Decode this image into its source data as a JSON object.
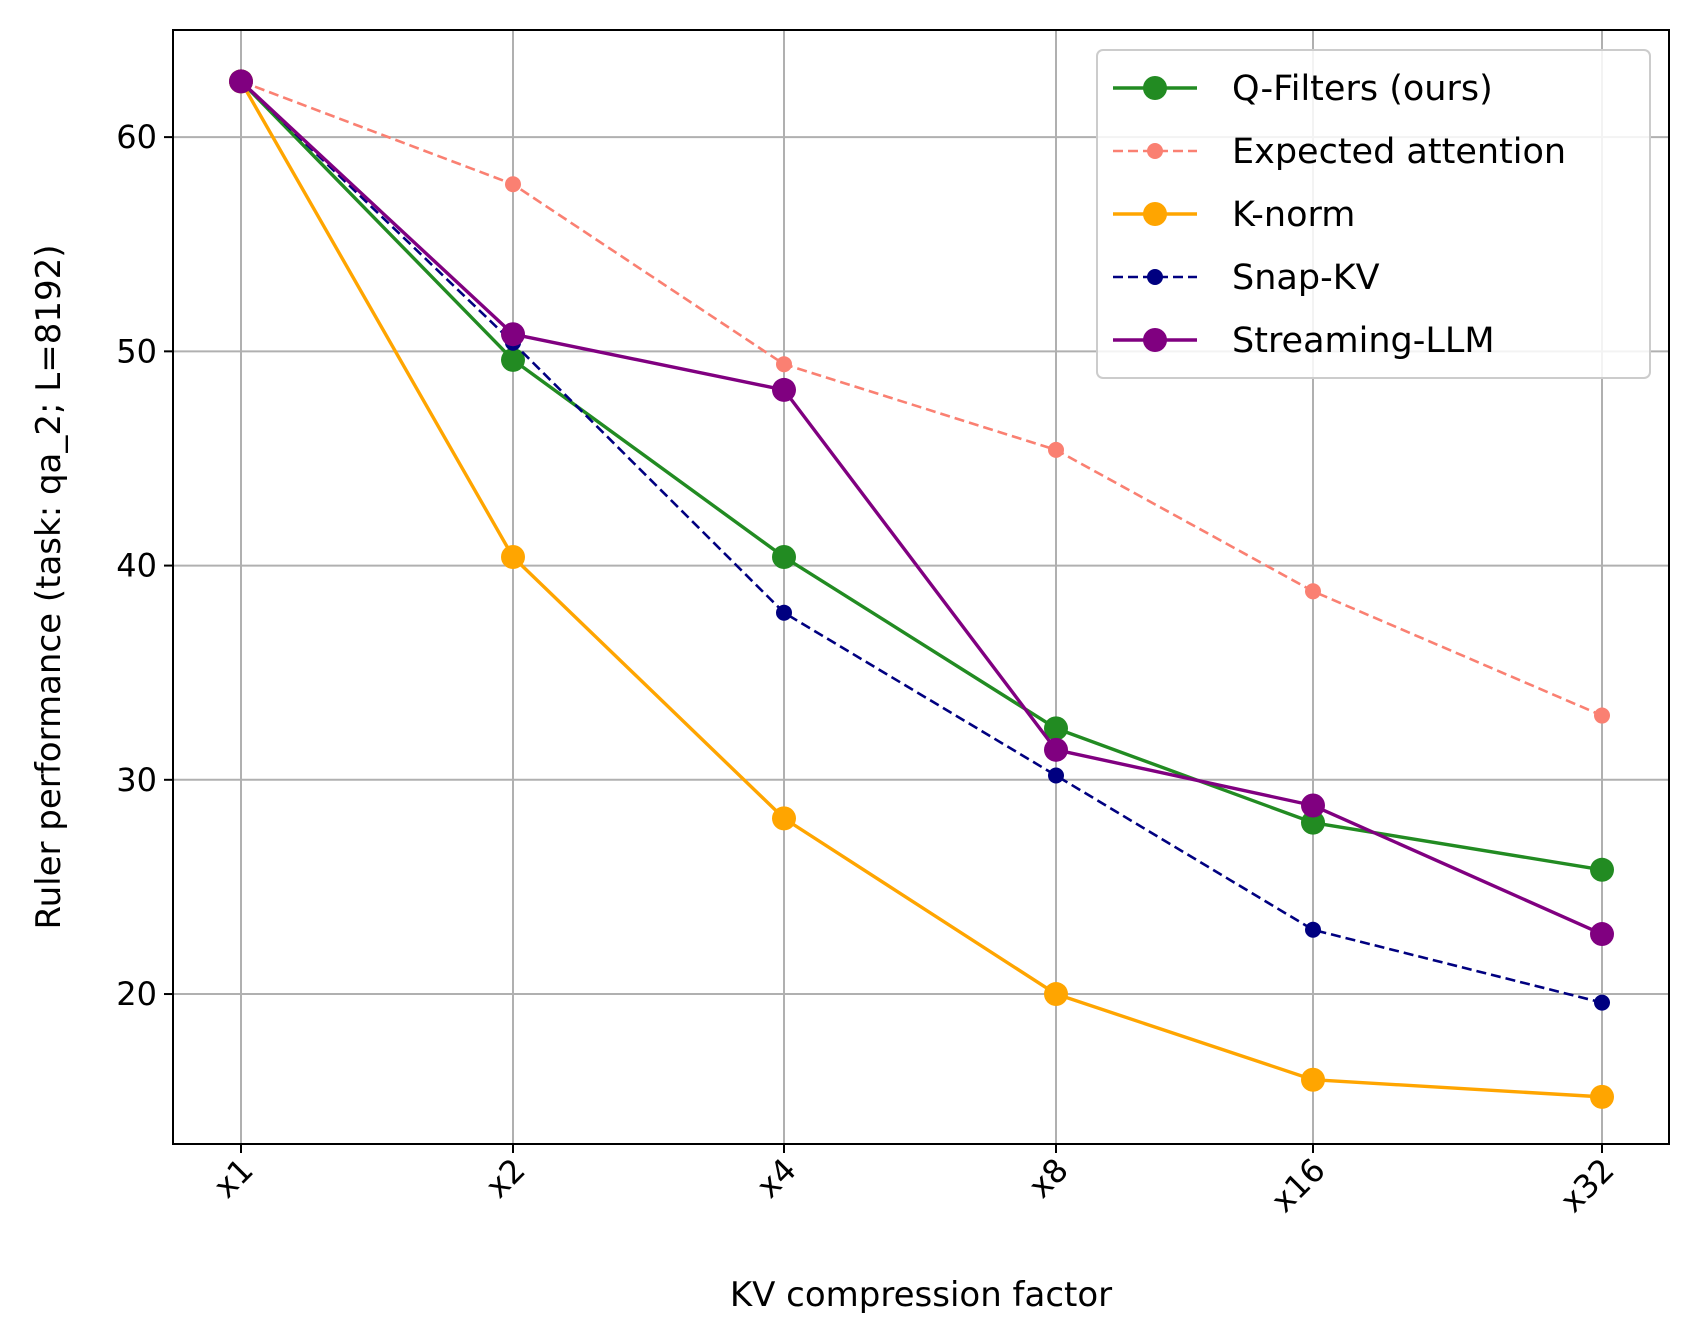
{
  "chart_data": {
    "type": "line",
    "xlabel": "KV compression factor",
    "ylabel": "Ruler performance (task: qa_2; L=8192)",
    "categories": [
      "x1",
      "x2",
      "x4",
      "x8",
      "x16",
      "x32"
    ],
    "ylim": [
      13,
      65
    ],
    "yticks": [
      20,
      30,
      40,
      50,
      60
    ],
    "grid": true,
    "legend_position": "top-right",
    "series": [
      {
        "name": "Q-Filters (ours)",
        "color": "#228b22",
        "style": "solid",
        "marker_size": "large",
        "values": [
          62.6,
          49.6,
          40.4,
          32.4,
          28.0,
          25.8
        ]
      },
      {
        "name": "Expected attention",
        "color": "#fa8072",
        "style": "dashed",
        "marker_size": "small",
        "values": [
          62.6,
          57.8,
          49.4,
          45.4,
          38.8,
          33.0
        ]
      },
      {
        "name": "K-norm",
        "color": "#ffa500",
        "style": "solid",
        "marker_size": "large",
        "values": [
          62.6,
          40.4,
          28.2,
          20.0,
          16.0,
          15.2
        ]
      },
      {
        "name": "Snap-KV",
        "color": "#000080",
        "style": "dashed",
        "marker_size": "small",
        "values": [
          62.6,
          50.4,
          37.8,
          30.2,
          23.0,
          19.6
        ]
      },
      {
        "name": "Streaming-LLM",
        "color": "#800080",
        "style": "solid",
        "marker_size": "large",
        "values": [
          62.6,
          50.8,
          48.2,
          31.4,
          28.8,
          22.8
        ]
      }
    ]
  }
}
